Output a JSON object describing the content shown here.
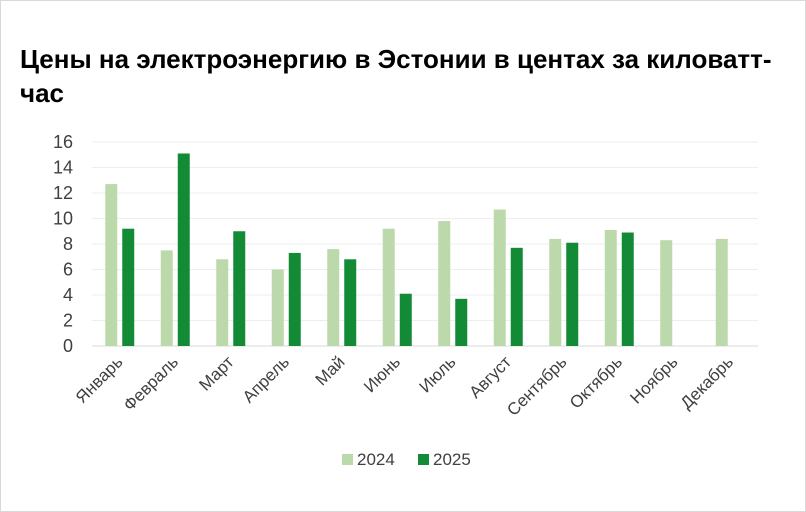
{
  "chart_data": {
    "type": "bar",
    "title": "Цены на электроэнергию в Эстонии в центах за киловатт-час",
    "xlabel": "",
    "ylabel": "",
    "categories": [
      "Январь",
      "Февраль",
      "Март",
      "Апрель",
      "Май",
      "Июнь",
      "Июль",
      "Август",
      "Сентябрь",
      "Октябрь",
      "Ноябрь",
      "Декабрь"
    ],
    "series": [
      {
        "name": "2024",
        "color": "#bcd9ab",
        "values": [
          12.7,
          7.5,
          6.8,
          6.0,
          7.6,
          9.2,
          9.8,
          10.7,
          8.4,
          9.1,
          8.3,
          8.4
        ]
      },
      {
        "name": "2025",
        "color": "#138a36",
        "values": [
          9.2,
          15.1,
          9.0,
          7.3,
          6.8,
          4.1,
          3.7,
          7.7,
          8.1,
          8.9,
          null,
          null
        ]
      }
    ],
    "ylim": [
      0,
      16
    ],
    "yticks": [
      "0",
      "2",
      "4",
      "6",
      "8",
      "10",
      "12",
      "14",
      "16"
    ],
    "grid": true,
    "legend_position": "bottom"
  }
}
